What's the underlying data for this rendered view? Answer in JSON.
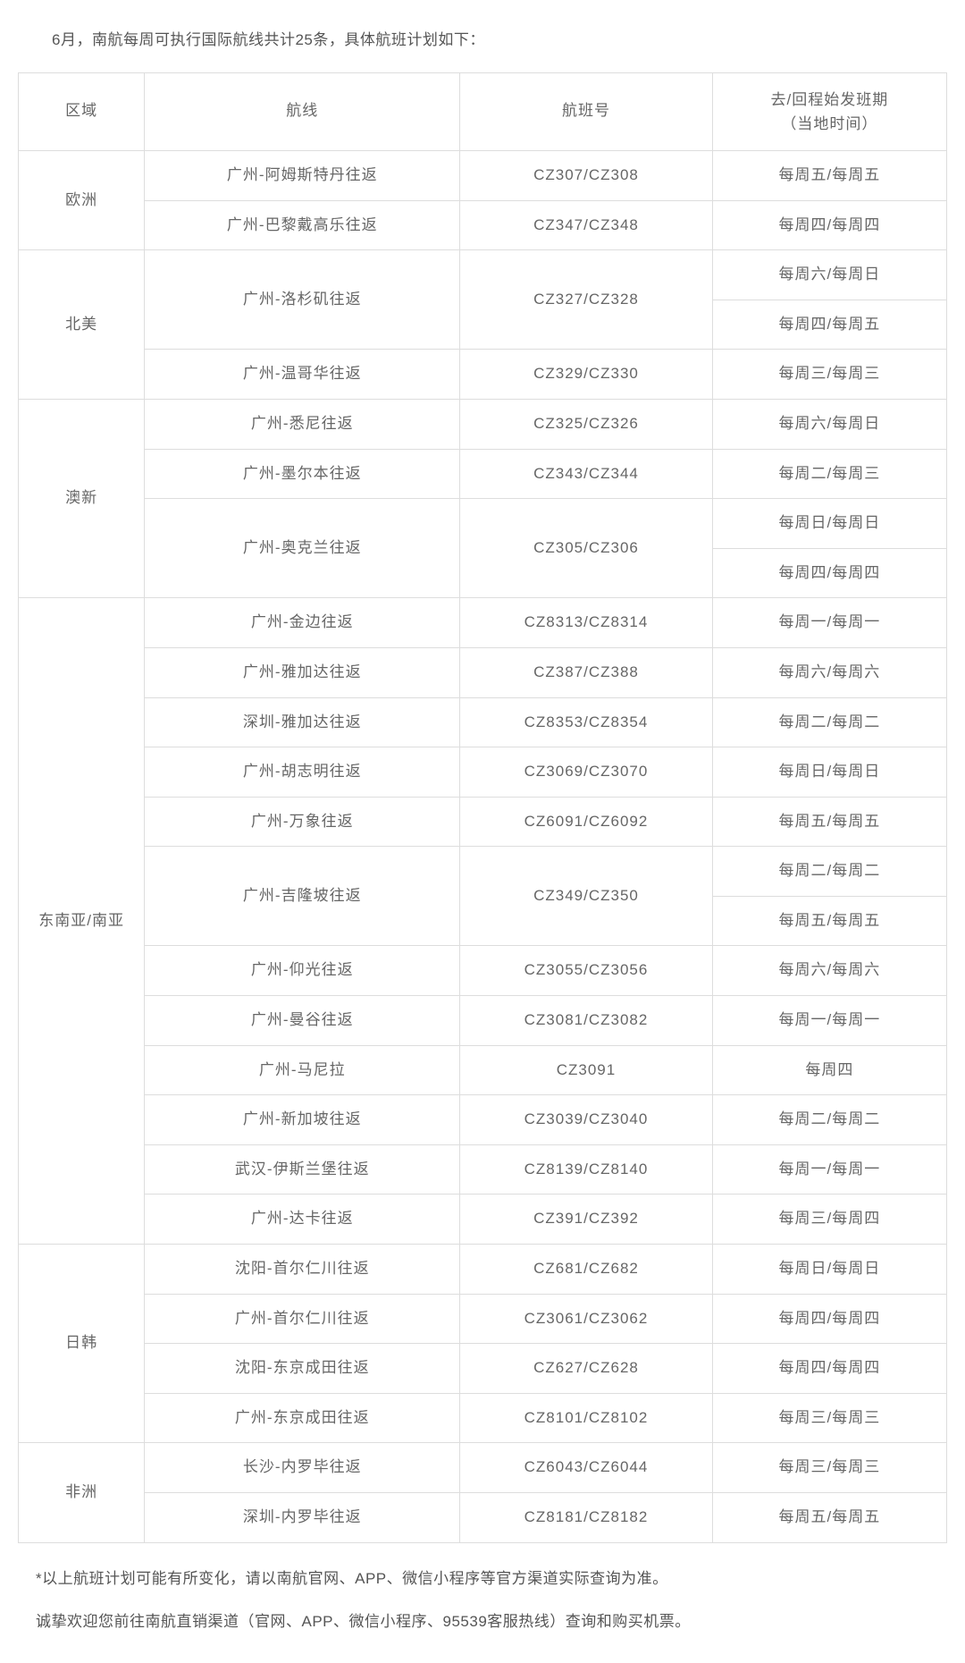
{
  "intro_text": "6月，南航每周可执行国际航线共计25条，具体航班计划如下：",
  "headers": {
    "region": "区域",
    "route": "航线",
    "flight_no": "航班号",
    "schedule_line1": "去/回程始发班期",
    "schedule_line2": "（当地时间）"
  },
  "regions": {
    "europe": "欧洲",
    "north_america": "北美",
    "aus_nz": "澳新",
    "se_asia": "东南亚/南亚",
    "jp_kr": "日韩",
    "africa": "非洲"
  },
  "rows": {
    "r1": {
      "route": "广州-阿姆斯特丹往返",
      "flight": "CZ307/CZ308",
      "schedule": "每周五/每周五"
    },
    "r2": {
      "route": "广州-巴黎戴高乐往返",
      "flight": "CZ347/CZ348",
      "schedule": "每周四/每周四"
    },
    "r3": {
      "route": "广州-洛杉矶往返",
      "flight": "CZ327/CZ328",
      "schedule": "每周六/每周日"
    },
    "r4": {
      "schedule": "每周四/每周五"
    },
    "r5": {
      "route": "广州-温哥华往返",
      "flight": "CZ329/CZ330",
      "schedule": "每周三/每周三"
    },
    "r6": {
      "route": "广州-悉尼往返",
      "flight": "CZ325/CZ326",
      "schedule": "每周六/每周日"
    },
    "r7": {
      "route": "广州-墨尔本往返",
      "flight": "CZ343/CZ344",
      "schedule": "每周二/每周三"
    },
    "r8": {
      "route": "广州-奥克兰往返",
      "flight": "CZ305/CZ306",
      "schedule": "每周日/每周日"
    },
    "r9": {
      "schedule": "每周四/每周四"
    },
    "r10": {
      "route": "广州-金边往返",
      "flight": "CZ8313/CZ8314",
      "schedule": "每周一/每周一"
    },
    "r11": {
      "route": "广州-雅加达往返",
      "flight": "CZ387/CZ388",
      "schedule": "每周六/每周六"
    },
    "r12": {
      "route": "深圳-雅加达往返",
      "flight": "CZ8353/CZ8354",
      "schedule": "每周二/每周二"
    },
    "r13": {
      "route": "广州-胡志明往返",
      "flight": "CZ3069/CZ3070",
      "schedule": "每周日/每周日"
    },
    "r14": {
      "route": "广州-万象往返",
      "flight": "CZ6091/CZ6092",
      "schedule": "每周五/每周五"
    },
    "r15": {
      "route": "广州-吉隆坡往返",
      "flight": "CZ349/CZ350",
      "schedule": "每周二/每周二"
    },
    "r16": {
      "schedule": "每周五/每周五"
    },
    "r17": {
      "route": "广州-仰光往返",
      "flight": "CZ3055/CZ3056",
      "schedule": "每周六/每周六"
    },
    "r18": {
      "route": "广州-曼谷往返",
      "flight": "CZ3081/CZ3082",
      "schedule": "每周一/每周一"
    },
    "r19": {
      "route": "广州-马尼拉",
      "flight": "CZ3091",
      "schedule": "每周四"
    },
    "r20": {
      "route": "广州-新加坡往返",
      "flight": "CZ3039/CZ3040",
      "schedule": "每周二/每周二"
    },
    "r21": {
      "route": "武汉-伊斯兰堡往返",
      "flight": "CZ8139/CZ8140",
      "schedule": "每周一/每周一"
    },
    "r22": {
      "route": "广州-达卡往返",
      "flight": "CZ391/CZ392",
      "schedule": "每周三/每周四"
    },
    "r23": {
      "route": "沈阳-首尔仁川往返",
      "flight": "CZ681/CZ682",
      "schedule": "每周日/每周日"
    },
    "r24": {
      "route": "广州-首尔仁川往返",
      "flight": "CZ3061/CZ3062",
      "schedule": "每周四/每周四"
    },
    "r25": {
      "route": "沈阳-东京成田往返",
      "flight": "CZ627/CZ628",
      "schedule": "每周四/每周四"
    },
    "r26": {
      "route": "广州-东京成田往返",
      "flight": "CZ8101/CZ8102",
      "schedule": "每周三/每周三"
    },
    "r27": {
      "route": "长沙-内罗毕往返",
      "flight": "CZ6043/CZ6044",
      "schedule": "每周三/每周三"
    },
    "r28": {
      "route": "深圳-内罗毕往返",
      "flight": "CZ8181/CZ8182",
      "schedule": "每周五/每周五"
    }
  },
  "footnote_text": "*以上航班计划可能有所变化，请以南航官网、APP、微信小程序等官方渠道实际查询为准。",
  "closing_text": "诚挚欢迎您前往南航直销渠道（官网、APP、微信小程序、95539客服热线）查询和购买机票。",
  "colors": {
    "border": "#dddddd",
    "text": "#666666",
    "background": "#ffffff"
  }
}
